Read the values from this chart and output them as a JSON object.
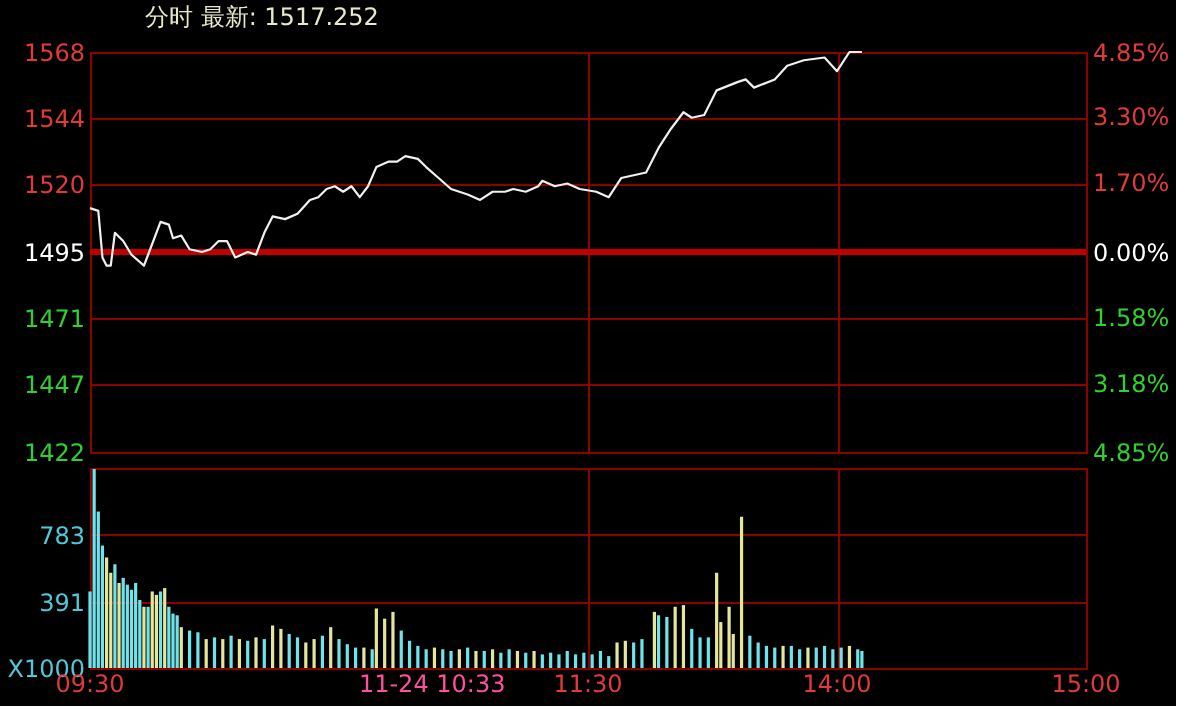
{
  "chart_data": [
    {
      "type": "line",
      "title": "分时 最新: 1517.252",
      "categories": [
        null,
        null,
        null,
        null,
        null,
        null,
        null,
        null,
        null,
        null,
        null,
        null,
        null,
        null,
        null,
        null,
        null,
        null,
        null,
        null,
        null,
        null,
        null,
        null,
        null,
        null,
        null,
        null,
        null,
        null,
        null,
        null,
        null,
        null,
        null,
        null,
        null,
        null,
        null,
        null,
        null,
        null,
        null,
        null,
        null,
        null,
        null,
        null,
        null,
        null,
        null,
        null,
        null,
        null,
        null,
        null,
        null,
        null,
        null,
        null,
        null,
        null,
        null,
        null,
        null,
        null,
        null,
        null,
        null,
        null,
        null,
        null,
        null,
        null,
        null,
        null,
        null,
        null,
        null,
        null,
        null,
        null,
        null,
        null,
        null,
        null,
        null,
        null,
        null,
        null,
        null,
        null,
        null,
        null,
        null,
        null,
        null,
        null,
        null,
        null,
        null,
        null,
        null,
        null,
        null,
        null,
        null,
        null,
        null,
        null,
        null,
        null,
        null,
        null,
        null,
        null,
        null,
        null,
        null,
        null,
        null,
        null,
        null,
        null,
        null,
        null,
        null,
        null,
        null,
        null,
        null,
        null,
        null,
        null,
        null,
        null,
        null,
        null,
        null,
        null,
        null,
        null,
        null,
        null,
        null,
        null,
        null,
        null,
        null,
        null,
        null,
        null,
        null,
        null,
        null,
        null,
        null,
        null,
        null,
        null,
        null,
        null,
        null,
        null,
        null,
        null,
        null,
        null,
        null,
        null,
        null,
        null,
        null,
        null,
        null,
        null,
        null,
        null,
        null,
        null,
        null,
        null,
        null,
        null,
        null,
        null,
        null,
        null,
        null,
        null,
        null,
        null,
        null,
        null,
        null,
        null,
        null,
        null,
        null,
        null,
        null,
        null,
        null,
        null,
        null,
        null,
        null,
        null,
        null,
        null,
        null,
        null,
        null,
        null,
        null,
        null,
        null,
        null,
        null,
        null,
        null,
        null,
        null,
        null,
        null,
        null,
        null,
        null,
        null,
        null,
        null,
        null,
        null,
        null,
        null,
        null,
        null,
        null,
        null,
        null,
        null
      ],
      "series": [
        {
          "color": "#f0f0f0",
          "values": [
            1511,
            null,
            1510,
            1493,
            1490,
            1490,
            1502,
            null,
            1499,
            null,
            1494,
            null,
            null,
            1490,
            1494,
            null,
            null,
            1506,
            null,
            1505,
            1500,
            null,
            1501,
            null,
            1496,
            null,
            null,
            1495,
            null,
            1496,
            null,
            1499,
            null,
            1499,
            null,
            1493,
            null,
            null,
            1495,
            null,
            1494,
            null,
            1502,
            null,
            1508,
            null,
            null,
            1507,
            null,
            null,
            1509,
            null,
            null,
            1514,
            null,
            1515,
            null,
            1518,
            null,
            1519,
            null,
            1517,
            null,
            1519,
            null,
            1515,
            null,
            1519,
            null,
            1526,
            null,
            null,
            1528,
            null,
            1528,
            null,
            1530,
            null,
            null,
            1529,
            null,
            1526,
            null,
            null,
            1522,
            null,
            null,
            1518,
            null,
            null,
            null,
            1516,
            null,
            null,
            1514,
            null,
            null,
            1517,
            null,
            null,
            1517,
            null,
            1518,
            null,
            null,
            1517,
            null,
            null,
            1519,
            1521,
            null,
            null,
            1519,
            null,
            null,
            1520,
            null,
            null,
            1518,
            null,
            null,
            null,
            1517,
            null,
            null,
            1515,
            null,
            null,
            1522,
            null,
            null,
            null,
            null,
            null,
            1524,
            null,
            null,
            1533,
            null,
            null,
            1540,
            null,
            null,
            1546,
            null,
            1544,
            null,
            null,
            1545,
            null,
            null,
            1554,
            null,
            null,
            null,
            null,
            1557,
            null,
            1558,
            null,
            1555,
            null,
            null,
            null,
            null,
            1558,
            null,
            null,
            1563,
            null,
            null,
            null,
            1565,
            null,
            null,
            null,
            null,
            1566,
            null,
            null,
            1561,
            null,
            null,
            1568,
            null,
            null,
            1568,
            null,
            null,
            null,
            null,
            null,
            null,
            null,
            null,
            null,
            null,
            null,
            null,
            null,
            null,
            null,
            null,
            null,
            null,
            null,
            null,
            null,
            null,
            null,
            null,
            null,
            null,
            null,
            null,
            null,
            null,
            null,
            null,
            null,
            null,
            null,
            null,
            null,
            null,
            null,
            null,
            null,
            null,
            null,
            null,
            null,
            null,
            null,
            null,
            null,
            null,
            null,
            null,
            null,
            null
          ]
        }
      ],
      "ylim": [
        1422,
        1568
      ],
      "yticks": [
        1422,
        1447,
        1471,
        1495,
        1520,
        1544,
        1568
      ],
      "y2lim": [
        -4.85,
        4.85
      ],
      "y2ticks": [
        {
          "value": -4.85,
          "label": "4.85%"
        },
        {
          "value": -3.18,
          "label": "3.18%"
        },
        {
          "value": -1.58,
          "label": "1.58%"
        },
        {
          "value": 0,
          "label": "0.00%"
        },
        {
          "value": 1.7,
          "label": "1.70%"
        },
        {
          "value": 3.3,
          "label": "3.30%"
        },
        {
          "value": 4.85,
          "label": "4.85%"
        }
      ],
      "ref_lines": [
        {
          "axis": "y",
          "value": 1495,
          "color": "#c00000"
        }
      ],
      "tick_labels": "y",
      "grid": true
    },
    {
      "type": "bar",
      "categories": [
        "09:30",
        null,
        null,
        null,
        null,
        null,
        null,
        null,
        null,
        null,
        null,
        null,
        null,
        null,
        null,
        null,
        null,
        null,
        null,
        null,
        null,
        null,
        null,
        null,
        null,
        null,
        null,
        null,
        null,
        null,
        null,
        null,
        null,
        null,
        null,
        null,
        null,
        null,
        null,
        null,
        null,
        null,
        null,
        null,
        null,
        null,
        null,
        null,
        null,
        null,
        null,
        null,
        null,
        null,
        null,
        null,
        null,
        null,
        null,
        null,
        null,
        null,
        null,
        null,
        null,
        null,
        null,
        null,
        null,
        null,
        null,
        null,
        null,
        null,
        null,
        null,
        null,
        null,
        null,
        null,
        null,
        null,
        null,
        null,
        null,
        null,
        null,
        null,
        null,
        null,
        null,
        null,
        null,
        null,
        null,
        null,
        null,
        null,
        null,
        null,
        null,
        null,
        null,
        null,
        null,
        null,
        null,
        null,
        null,
        null,
        null,
        null,
        null,
        null,
        null,
        null,
        null,
        null,
        null,
        null,
        "11:30",
        null,
        null,
        null,
        null,
        null,
        null,
        null,
        null,
        null,
        null,
        null,
        null,
        null,
        null,
        null,
        null,
        null,
        null,
        null,
        null,
        null,
        null,
        null,
        null,
        null,
        null,
        null,
        null,
        null,
        null,
        null,
        null,
        null,
        null,
        null,
        null,
        null,
        null,
        null,
        null,
        null,
        null,
        null,
        null,
        null,
        null,
        null,
        null,
        null,
        null,
        null,
        null,
        null,
        null,
        null,
        null,
        null,
        null,
        null,
        "14:00",
        null,
        null,
        null,
        null,
        null,
        null,
        null,
        null,
        null,
        null,
        null,
        null,
        null,
        null,
        null,
        null,
        null,
        null,
        null,
        null,
        null,
        null,
        null,
        null,
        null,
        null,
        null,
        null,
        null,
        null,
        null,
        null,
        null,
        null,
        null,
        null,
        null,
        null,
        null,
        null,
        null,
        null,
        null,
        null,
        null,
        null,
        null,
        null,
        null,
        null,
        null,
        null,
        null,
        null,
        null,
        null,
        null,
        null,
        null,
        "15:00"
      ],
      "values": [
        450,
        1170,
        920,
        720,
        650,
        560,
        610,
        500,
        530,
        490,
        460,
        500,
        400,
        360,
        360,
        450,
        430,
        450,
        470,
        360,
        320,
        310,
        240,
        null,
        220,
        null,
        210,
        null,
        170,
        null,
        180,
        null,
        170,
        null,
        190,
        null,
        170,
        null,
        160,
        null,
        180,
        null,
        170,
        null,
        250,
        null,
        230,
        null,
        200,
        null,
        180,
        null,
        150,
        null,
        170,
        null,
        190,
        null,
        240,
        null,
        170,
        null,
        140,
        null,
        120,
        null,
        120,
        null,
        110,
        350,
        null,
        290,
        null,
        330,
        null,
        220,
        null,
        160,
        null,
        130,
        null,
        110,
        null,
        120,
        null,
        110,
        null,
        100,
        null,
        110,
        null,
        120,
        null,
        100,
        null,
        100,
        null,
        110,
        null,
        90,
        null,
        110,
        null,
        100,
        null,
        90,
        null,
        100,
        null,
        80,
        null,
        90,
        null,
        80,
        null,
        100,
        null,
        80,
        null,
        90,
        null,
        80,
        null,
        100,
        null,
        70,
        null,
        150,
        null,
        160,
        null,
        150,
        null,
        170,
        null,
        null,
        330,
        310,
        null,
        300,
        null,
        360,
        null,
        370,
        null,
        230,
        null,
        180,
        null,
        180,
        null,
        560,
        270,
        null,
        360,
        200,
        null,
        890,
        null,
        190,
        null,
        150,
        null,
        130,
        null,
        120,
        null,
        130,
        null,
        130,
        null,
        110,
        null,
        120,
        null,
        120,
        null,
        130,
        null,
        110,
        null,
        120,
        null,
        130,
        null,
        110,
        100,
        null,
        null,
        null,
        null,
        null,
        null,
        null,
        null,
        null,
        null,
        null,
        null,
        null,
        null,
        null,
        null,
        null,
        null,
        null,
        null,
        null,
        null,
        null,
        null,
        null,
        null,
        null,
        null,
        null,
        null,
        null,
        null,
        null,
        null,
        null,
        null,
        null,
        null,
        null,
        null,
        null,
        null,
        null,
        null,
        null,
        null,
        null,
        null,
        null,
        null,
        null,
        null,
        null,
        null
      ],
      "colors": [
        "#6fe3ea",
        "#6fe3ea",
        "#6fe3ea",
        "#6fe3ea",
        "#e6e69a",
        "#e6e69a",
        "#6fe3ea",
        "#e6e69a",
        "#6fe3ea",
        "#6fe3ea",
        "#6fe3ea",
        "#6fe3ea",
        "#6fe3ea",
        "#e6e69a",
        "#6fe3ea",
        "#e6e69a",
        "#e6e69a",
        "#6fe3ea",
        "#e6e69a",
        "#6fe3ea",
        "#6fe3ea",
        "#6fe3ea",
        "#e6e69a",
        null,
        "#6fe3ea",
        null,
        "#6fe3ea",
        null,
        "#e6e69a",
        null,
        "#6fe3ea",
        null,
        "#e6e69a",
        null,
        "#6fe3ea",
        null,
        "#e6e69a",
        null,
        "#6fe3ea",
        null,
        "#e6e69a",
        null,
        "#6fe3ea",
        null,
        "#e6e69a",
        null,
        "#e6e69a",
        null,
        "#6fe3ea",
        null,
        "#6fe3ea",
        null,
        "#e6e69a",
        null,
        "#e6e69a",
        null,
        "#6fe3ea",
        null,
        "#e6e69a",
        null,
        "#6fe3ea",
        null,
        "#6fe3ea",
        null,
        "#6fe3ea",
        null,
        "#e6e69a",
        null,
        "#6fe3ea",
        "#e6e69a",
        null,
        "#e6e69a",
        null,
        "#e6e69a",
        null,
        "#6fe3ea",
        null,
        "#6fe3ea",
        null,
        "#6fe3ea",
        null,
        "#6fe3ea",
        null,
        "#e6e69a",
        null,
        "#6fe3ea",
        null,
        "#6fe3ea",
        null,
        "#e6e69a",
        null,
        "#6fe3ea",
        null,
        "#e6e69a",
        null,
        "#6fe3ea",
        null,
        "#e6e69a",
        null,
        "#6fe3ea",
        null,
        "#6fe3ea",
        null,
        "#e6e69a",
        null,
        "#6fe3ea",
        null,
        "#e6e69a",
        null,
        "#6fe3ea",
        null,
        "#6fe3ea",
        null,
        "#6fe3ea",
        null,
        "#6fe3ea",
        null,
        "#6fe3ea",
        null,
        "#6fe3ea",
        null,
        "#6fe3ea",
        null,
        "#6fe3ea",
        null,
        "#6fe3ea",
        null,
        "#e6e69a",
        null,
        "#e6e69a",
        null,
        "#6fe3ea",
        null,
        "#6fe3ea",
        null,
        null,
        "#e6e69a",
        "#6fe3ea",
        null,
        "#6fe3ea",
        null,
        "#e6e69a",
        null,
        "#e6e69a",
        null,
        "#6fe3ea",
        null,
        "#6fe3ea",
        null,
        "#6fe3ea",
        null,
        "#e6e69a",
        "#e6e69a",
        null,
        "#e6e69a",
        "#e6e69a",
        null,
        "#e6e69a",
        null,
        "#6fe3ea",
        null,
        "#6fe3ea",
        null,
        "#6fe3ea",
        null,
        "#6fe3ea",
        null,
        "#e6e69a",
        null,
        "#6fe3ea",
        null,
        "#6fe3ea",
        null,
        "#e6e69a",
        null,
        "#6fe3ea",
        null,
        "#6fe3ea",
        null,
        "#6fe3ea",
        null,
        "#6fe3ea",
        null,
        "#e6e69a",
        null,
        "#6fe3ea",
        "#6fe3ea",
        null,
        null,
        null,
        null,
        null,
        null,
        null,
        null,
        null,
        null,
        null,
        null,
        null,
        null,
        null,
        null,
        null,
        null,
        null,
        null,
        null,
        null,
        null,
        null,
        null,
        null,
        null,
        null,
        null,
        null,
        null,
        null,
        null,
        null,
        null,
        null,
        null,
        null,
        null,
        null,
        null,
        null,
        null,
        null,
        null,
        null,
        null,
        null,
        null,
        null,
        null,
        null,
        null,
        null
      ],
      "ylim": [
        0,
        1176
      ],
      "yticks": [
        {
          "value": 0,
          "label": "X1000"
        },
        391,
        783
      ],
      "annotations": [
        "11-24 10:33"
      ],
      "grid": true
    }
  ]
}
